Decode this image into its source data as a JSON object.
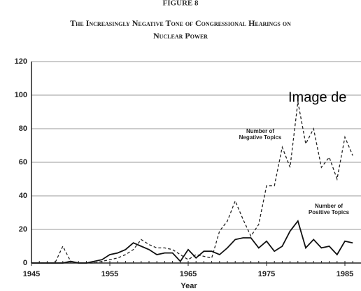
{
  "chart_data": {
    "type": "line",
    "figure_label": "FIGURE 8",
    "title_lines": [
      "The Increasingly Negative Tone of Congressional Hearings on",
      "Nuclear Power"
    ],
    "x_label": "Year",
    "overlay_text": "Image de",
    "x": [
      1945,
      1946,
      1947,
      1948,
      1949,
      1950,
      1951,
      1952,
      1953,
      1954,
      1955,
      1956,
      1957,
      1958,
      1959,
      1960,
      1961,
      1962,
      1963,
      1964,
      1965,
      1966,
      1967,
      1968,
      1969,
      1970,
      1971,
      1972,
      1973,
      1974,
      1975,
      1976,
      1977,
      1978,
      1979,
      1980,
      1981,
      1982,
      1983,
      1984,
      1985,
      1986
    ],
    "series": [
      {
        "label_lines": [
          "Number of",
          "Negative Topics"
        ],
        "color": "#222222",
        "dash": true,
        "values": [
          0,
          0,
          0,
          0,
          10,
          1,
          0,
          0,
          0,
          1,
          2,
          3,
          5,
          8,
          14,
          11,
          9,
          9,
          8,
          5,
          2,
          5,
          4,
          3,
          19,
          25,
          37,
          26,
          16,
          23,
          46,
          46,
          69,
          57,
          96,
          71,
          80,
          57,
          63,
          50,
          75,
          64
        ]
      },
      {
        "label_lines": [
          "Number of",
          "Positive Topics"
        ],
        "color": "#111111",
        "dash": false,
        "values": [
          0,
          0,
          0,
          0,
          0,
          1,
          0,
          0,
          1,
          2,
          5,
          6,
          8,
          12,
          10,
          8,
          5,
          6,
          6,
          1,
          8,
          3,
          7,
          7,
          5,
          9,
          14,
          15,
          15,
          9,
          13,
          7,
          10,
          19,
          25,
          9,
          14,
          9,
          10,
          5,
          13,
          12
        ]
      }
    ],
    "xlim": [
      1945,
      1987
    ],
    "xticks": [
      1945,
      1955,
      1965,
      1975,
      1985
    ],
    "ylim": [
      0,
      120
    ],
    "yticks": [
      0,
      20,
      40,
      60,
      80,
      100,
      120
    ],
    "grid": true
  }
}
